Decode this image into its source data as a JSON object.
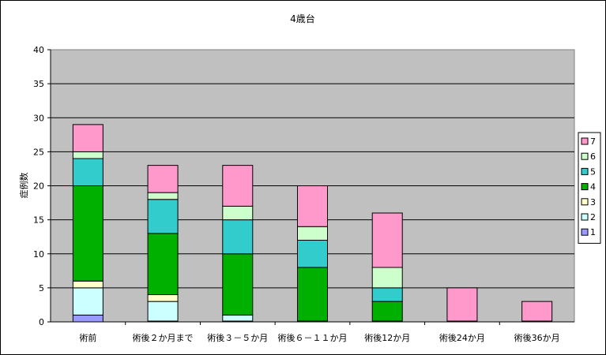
{
  "chart_data": {
    "type": "bar",
    "stacked": true,
    "title": "4歳台",
    "ylabel": "症例数",
    "xlabel": "",
    "ylim": [
      0,
      40
    ],
    "yticks": [
      0,
      5,
      10,
      15,
      20,
      25,
      30,
      35,
      40
    ],
    "grid": true,
    "legend_position": "right",
    "plot_background": "#c0c0c0",
    "categories": [
      "術前",
      "術後２か月まで",
      "術後３－５か月",
      "術後６－１１か月",
      "術後12か月",
      "術後24か月",
      "術後36か月"
    ],
    "series": [
      {
        "name": "1",
        "color": "#9999ff",
        "values": [
          1,
          0,
          0,
          0,
          0,
          0,
          0
        ]
      },
      {
        "name": "2",
        "color": "#ccffff",
        "values": [
          4,
          3,
          1,
          0,
          0,
          0,
          0
        ]
      },
      {
        "name": "3",
        "color": "#ffffcc",
        "values": [
          1,
          1,
          0,
          0,
          0,
          0,
          0
        ]
      },
      {
        "name": "4",
        "color": "#00b000",
        "values": [
          14,
          9,
          9,
          8,
          3,
          0,
          0
        ]
      },
      {
        "name": "5",
        "color": "#33cccc",
        "values": [
          4,
          5,
          5,
          4,
          2,
          0,
          0
        ]
      },
      {
        "name": "6",
        "color": "#ccffcc",
        "values": [
          1,
          1,
          2,
          2,
          3,
          0,
          0
        ]
      },
      {
        "name": "7",
        "color": "#ff99cc",
        "values": [
          4,
          4,
          6,
          6,
          8,
          5,
          3
        ]
      }
    ]
  }
}
